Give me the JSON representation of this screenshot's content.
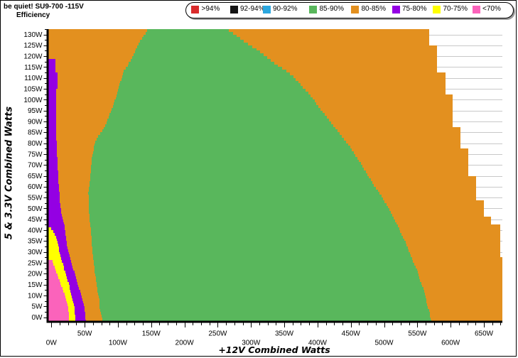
{
  "window": {
    "title_line1": "be quiet! SU9-700 -115V",
    "title_line2": "Efficiency"
  },
  "chart_data": {
    "type": "heatmap",
    "title": "be quiet! SU9-700 -115V",
    "subtitle": "Efficiency",
    "xlabel": "+12V Combined Watts",
    "ylabel": "5 & 3.3V Combined Watts",
    "x_unit": "W",
    "y_unit": "W",
    "xlim": [
      -6.25,
      677.5
    ],
    "ylim": [
      -2.5,
      132.5
    ],
    "x_tick_major": 50,
    "x_tick_minor": 12.5,
    "x_tick_labels": [
      "0W",
      "50W",
      "100W",
      "150W",
      "200W",
      "250W",
      "300W",
      "350W",
      "400W",
      "450W",
      "500W",
      "550W",
      "600W",
      "650W"
    ],
    "y_tick_major": 5,
    "y_tick_minor": 2.5,
    "y_tick_labels": [
      "0W",
      "5W",
      "10W",
      "15W",
      "20W",
      "25W",
      "30W",
      "35W",
      "40W",
      "45W",
      "50W",
      "55W",
      "60W",
      "65W",
      "70W",
      "75W",
      "80W",
      "85W",
      "90W",
      "95W",
      "100W",
      "105W",
      "110W",
      "115W",
      "120W",
      "125W",
      "130W"
    ],
    "grid": "horizontal-5W-visible-outside-data",
    "grid_color": "#C8C8C8",
    "legend_position": "top",
    "legend": {
      "items": [
        {
          "label": ">94%",
          "color": "#D92B2B"
        },
        {
          "label": "92-94%",
          "color": "#141414"
        },
        {
          "label": "90-92%",
          "color": "#2BA7DF"
        },
        {
          "label": "85-90%",
          "color": "#59B75C"
        },
        {
          "label": "80-85%",
          "color": "#E3901F"
        },
        {
          "label": "75-80%",
          "color": "#9400E3"
        },
        {
          "label": "70-75%",
          "color": "#FFFF00"
        },
        {
          "label": "<70%",
          "color": "#FB63BB"
        }
      ]
    },
    "region_order": [
      "<70%",
      "70-75%",
      "75-80%",
      "80-85%",
      "85-90%",
      "80-85%"
    ],
    "rows_format": [
      "y_low_W",
      "end_lt70",
      "end_70_75",
      "end_75_80",
      "green_start",
      "green_end",
      "row_end_max_power"
    ],
    "row_height_W": 1.25,
    "rows": [
      [
        -2.5,
        26.1,
        35.7,
        51.5,
        76.5,
        571.4,
        677.5
      ],
      [
        -1.2,
        26.1,
        35.6,
        51.4,
        76.5,
        570.1,
        677.5
      ],
      [
        0.0,
        26.1,
        35.6,
        51.3,
        75.9,
        569.1,
        677.5
      ],
      [
        1.2,
        26.0,
        35.4,
        50.8,
        74.6,
        568.3,
        677.5
      ],
      [
        2.5,
        25.7,
        35.2,
        50.2,
        73.5,
        567.3,
        677.5
      ],
      [
        3.8,
        25.4,
        34.8,
        49.5,
        72.7,
        566.1,
        677.5
      ],
      [
        5.0,
        24.7,
        34.0,
        48.6,
        72.6,
        565.0,
        677.5
      ],
      [
        6.2,
        23.7,
        33.2,
        47.8,
        72.4,
        564.0,
        677.5
      ],
      [
        7.5,
        22.5,
        32.2,
        46.8,
        72.1,
        563.1,
        677.5
      ],
      [
        8.8,
        21.2,
        31.0,
        45.6,
        71.3,
        562.1,
        677.5
      ],
      [
        10.0,
        19.6,
        29.8,
        44.4,
        70.4,
        561.2,
        677.5
      ],
      [
        11.2,
        17.6,
        28.8,
        43.1,
        69.6,
        560.2,
        677.5
      ],
      [
        12.5,
        16.4,
        27.9,
        41.8,
        69.0,
        558.9,
        677.5
      ],
      [
        13.8,
        15.1,
        27.0,
        40.5,
        68.5,
        557.5,
        677.5
      ],
      [
        15.0,
        13.5,
        25.9,
        39.4,
        68.0,
        556.0,
        677.5
      ],
      [
        16.2,
        12.0,
        24.7,
        38.2,
        67.3,
        554.3,
        677.5
      ],
      [
        17.5,
        10.8,
        23.4,
        37.0,
        66.5,
        552.5,
        677.5
      ],
      [
        18.8,
        9.1,
        22.0,
        35.7,
        65.8,
        551.3,
        677.5
      ],
      [
        20.0,
        7.3,
        20.6,
        34.5,
        65.2,
        550.3,
        677.5
      ],
      [
        21.2,
        6.4,
        19.4,
        33.2,
        64.9,
        549.2,
        677.5
      ],
      [
        22.5,
        4.9,
        18.4,
        32.0,
        64.5,
        547.4,
        677.5
      ],
      [
        23.8,
        2.8,
        17.4,
        30.8,
        64.1,
        545.5,
        677.5
      ],
      [
        25.0,
        1.3,
        16.1,
        29.5,
        63.5,
        543.7,
        677.5
      ],
      [
        26.2,
        -6.2,
        14.9,
        28.3,
        62.9,
        542.0,
        677.5
      ],
      [
        27.5,
        -6.2,
        13.6,
        27.0,
        62.3,
        540.3,
        674.5
      ],
      [
        28.8,
        -6.2,
        12.7,
        26.2,
        61.9,
        538.5,
        674.5
      ],
      [
        30.0,
        -6.2,
        11.8,
        25.3,
        61.6,
        536.8,
        674.5
      ],
      [
        31.2,
        -6.2,
        10.9,
        24.4,
        61.2,
        535.2,
        674.5
      ],
      [
        32.5,
        -6.2,
        10.0,
        23.6,
        60.9,
        533.6,
        674.5
      ],
      [
        33.8,
        -6.2,
        9.1,
        22.9,
        60.7,
        532.0,
        674.5
      ],
      [
        35.0,
        -6.2,
        8.3,
        22.4,
        60.4,
        530.4,
        674.5
      ],
      [
        36.2,
        -6.2,
        7.3,
        22.0,
        60.1,
        528.4,
        674.5
      ],
      [
        37.5,
        -6.2,
        5.3,
        21.5,
        59.8,
        526.4,
        674.5
      ],
      [
        38.8,
        -6.2,
        2.7,
        21.0,
        59.5,
        524.4,
        674.5
      ],
      [
        40.0,
        -6.2,
        0.2,
        20.4,
        59.1,
        522.4,
        674.5
      ],
      [
        41.2,
        -6.2,
        -6.2,
        19.5,
        58.6,
        520.3,
        674.5
      ],
      [
        42.5,
        -6.2,
        -6.2,
        18.6,
        58.1,
        518.2,
        661
      ],
      [
        43.8,
        -6.2,
        -6.2,
        17.7,
        57.6,
        516.1,
        661
      ],
      [
        45.0,
        -6.2,
        -6.2,
        16.7,
        57.3,
        514.0,
        661
      ],
      [
        46.2,
        -6.2,
        -6.2,
        15.7,
        57.0,
        512.0,
        650.5
      ],
      [
        47.5,
        -6.2,
        -6.2,
        14.8,
        56.7,
        510.0,
        650.5
      ],
      [
        48.8,
        -6.2,
        -6.2,
        14.3,
        56.4,
        508.0,
        650.5
      ],
      [
        50.0,
        -6.2,
        -6.2,
        13.9,
        56.2,
        505.9,
        650.5
      ],
      [
        51.2,
        -6.2,
        -6.2,
        13.4,
        56.1,
        503.4,
        650.5
      ],
      [
        52.5,
        -6.2,
        -6.2,
        13.0,
        55.9,
        500.9,
        650.5
      ],
      [
        53.8,
        -6.2,
        -6.2,
        12.6,
        55.8,
        498.4,
        638.5
      ],
      [
        55.0,
        -6.2,
        -6.2,
        12.3,
        55.8,
        495.9,
        638.5
      ],
      [
        56.2,
        -6.2,
        -6.2,
        12.0,
        55.7,
        493.2,
        638.5
      ],
      [
        57.5,
        -6.2,
        -6.2,
        11.6,
        55.8,
        490.4,
        638.5
      ],
      [
        58.8,
        -6.2,
        -6.2,
        11.3,
        56.4,
        487.6,
        638.5
      ],
      [
        60.0,
        -6.2,
        -6.2,
        11.0,
        57.0,
        484.8,
        638.5
      ],
      [
        61.2,
        -6.2,
        -6.2,
        10.8,
        57.5,
        482.3,
        638.5
      ],
      [
        62.5,
        -6.2,
        -6.2,
        10.5,
        57.9,
        479.8,
        638.5
      ],
      [
        63.8,
        -6.2,
        -6.2,
        10.3,
        58.3,
        477.4,
        638.5
      ],
      [
        65.0,
        -6.2,
        -6.2,
        10.1,
        58.8,
        474.9,
        627
      ],
      [
        66.2,
        -6.2,
        -6.2,
        9.9,
        59.3,
        472.4,
        627
      ],
      [
        67.5,
        -6.2,
        -6.2,
        9.7,
        59.6,
        469.9,
        627
      ],
      [
        68.8,
        -6.2,
        -6.2,
        9.5,
        59.9,
        467.4,
        627
      ],
      [
        70.0,
        -6.2,
        -6.2,
        9.3,
        60.1,
        464.8,
        627
      ],
      [
        71.2,
        -6.2,
        -6.2,
        9.1,
        60.4,
        462.3,
        627
      ],
      [
        72.5,
        -6.2,
        -6.2,
        8.9,
        61.0,
        459.8,
        627
      ],
      [
        73.8,
        -6.2,
        -6.2,
        8.7,
        61.6,
        457.2,
        627
      ],
      [
        75.0,
        -6.2,
        -6.2,
        8.5,
        62.4,
        454.4,
        627
      ],
      [
        76.2,
        -6.2,
        -6.2,
        8.3,
        63.5,
        451.6,
        627
      ],
      [
        77.5,
        -6.2,
        -6.2,
        8.1,
        64.1,
        448.8,
        615
      ],
      [
        78.8,
        -6.2,
        -6.2,
        7.9,
        64.8,
        445.7,
        615
      ],
      [
        80.0,
        -6.2,
        -6.2,
        7.7,
        66.1,
        442.5,
        615
      ],
      [
        81.2,
        -6.2,
        -6.2,
        7.5,
        68.0,
        439.2,
        615
      ],
      [
        82.5,
        -6.2,
        -6.2,
        7.3,
        69.9,
        435.9,
        615
      ],
      [
        83.8,
        -6.2,
        -6.2,
        7.2,
        72.9,
        433.0,
        615
      ],
      [
        85.0,
        -6.2,
        -6.2,
        7.1,
        76.4,
        430.1,
        615
      ],
      [
        86.2,
        -6.2,
        -6.2,
        7.1,
        79.2,
        427.2,
        615
      ],
      [
        87.5,
        -6.2,
        -6.2,
        7.0,
        80.9,
        424.1,
        603.5
      ],
      [
        88.8,
        -6.2,
        -6.2,
        7.0,
        82.6,
        420.8,
        603.5
      ],
      [
        90.0,
        -6.2,
        -6.2,
        7.0,
        84.2,
        417.6,
        603.5
      ],
      [
        91.2,
        -6.2,
        -6.2,
        6.9,
        86.0,
        414.3,
        603.5
      ],
      [
        92.5,
        -6.2,
        -6.2,
        6.9,
        87.7,
        411.0,
        603.5
      ],
      [
        93.8,
        -6.2,
        -6.2,
        6.8,
        89.4,
        407.8,
        603.5
      ],
      [
        95.0,
        -6.2,
        -6.2,
        6.8,
        90.9,
        404.5,
        603.5
      ],
      [
        96.2,
        -6.2,
        -6.2,
        6.8,
        92.3,
        401.4,
        603.5
      ],
      [
        97.5,
        -6.2,
        -6.2,
        6.8,
        93.8,
        398.5,
        603.5
      ],
      [
        98.8,
        -6.2,
        -6.2,
        6.8,
        95.1,
        395.7,
        603.5
      ],
      [
        100.0,
        -6.2,
        -6.2,
        6.9,
        96.4,
        392.8,
        603.5
      ],
      [
        101.2,
        -6.2,
        -6.2,
        6.9,
        97.7,
        389.5,
        603.5
      ],
      [
        102.5,
        -6.2,
        -6.2,
        6.9,
        98.8,
        385.7,
        592
      ],
      [
        103.8,
        -6.2,
        -6.2,
        6.9,
        99.8,
        382.0,
        592
      ],
      [
        105.0,
        -6.2,
        -6.2,
        8.9,
        100.8,
        378.2,
        592
      ],
      [
        106.2,
        -6.2,
        -6.2,
        8.9,
        102.2,
        374.6,
        592
      ],
      [
        107.5,
        -6.2,
        -6.2,
        8.9,
        103.5,
        371.0,
        592
      ],
      [
        108.8,
        -6.2,
        -6.2,
        8.9,
        104.9,
        367.5,
        592
      ],
      [
        110.0,
        -6.2,
        -6.2,
        8.9,
        106.2,
        363.4,
        592
      ],
      [
        111.2,
        -6.2,
        -6.2,
        8.9,
        107.5,
        358.1,
        592
      ],
      [
        112.5,
        -6.2,
        -6.2,
        6.1,
        108.8,
        352.8,
        580
      ],
      [
        113.8,
        -6.2,
        -6.2,
        6.1,
        111.5,
        346.6,
        580
      ],
      [
        115.0,
        -6.2,
        -6.2,
        6.1,
        114.5,
        340.5,
        580
      ],
      [
        116.2,
        -6.2,
        -6.2,
        6.1,
        116.6,
        335.2,
        580
      ],
      [
        117.5,
        -6.2,
        -6.2,
        6.1,
        118.8,
        329.8,
        580
      ],
      [
        118.8,
        -6.2,
        -6.2,
        -6.2,
        121.1,
        324.2,
        580
      ],
      [
        120.0,
        -6.2,
        -6.2,
        -6.2,
        123.3,
        318.8,
        580
      ],
      [
        121.2,
        -6.2,
        -6.2,
        -6.2,
        125.3,
        313.5,
        580
      ],
      [
        122.5,
        -6.2,
        -6.2,
        -6.2,
        127.2,
        308.0,
        580
      ],
      [
        123.8,
        -6.2,
        -6.2,
        -6.2,
        128.9,
        302.1,
        580
      ],
      [
        125.0,
        -6.2,
        -6.2,
        -6.2,
        131.0,
        295.4,
        567.5
      ],
      [
        126.2,
        -6.2,
        -6.2,
        -6.2,
        133.3,
        289.2,
        567.5
      ],
      [
        127.5,
        -6.2,
        -6.2,
        -6.2,
        135.9,
        283.6,
        567.5
      ],
      [
        128.8,
        -6.2,
        -6.2,
        -6.2,
        138.7,
        278.2,
        567.5
      ],
      [
        130.0,
        -6.2,
        -6.2,
        -6.2,
        141.3,
        272.9,
        567.5
      ],
      [
        131.2,
        -6.2,
        -6.2,
        -6.2,
        143.9,
        267.0,
        567.5
      ]
    ]
  }
}
